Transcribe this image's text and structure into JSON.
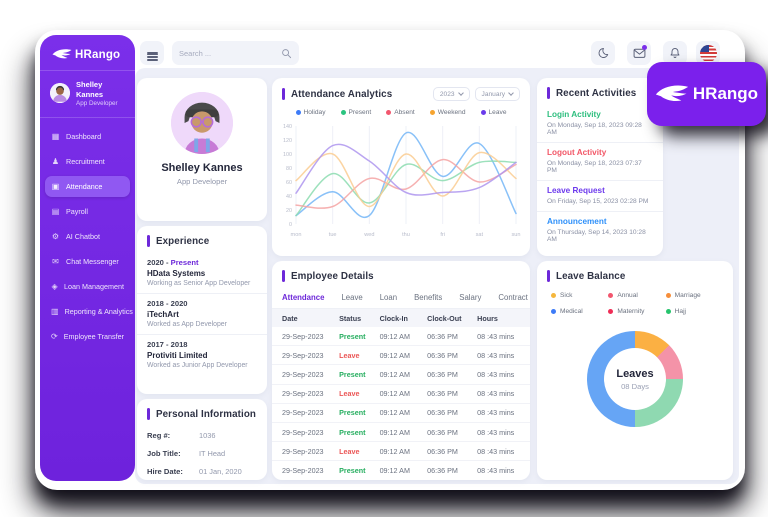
{
  "sidebar": {
    "logo_text": "HRango",
    "user": {
      "name": "Shelley Kannes",
      "role": "App Developer"
    },
    "items": [
      {
        "label": "Dashboard",
        "icon": "dashboard-icon",
        "glyph": "▦",
        "active": false
      },
      {
        "label": "Recruitment",
        "icon": "recruitment-icon",
        "glyph": "♟",
        "active": false
      },
      {
        "label": "Attendance",
        "icon": "attendance-icon",
        "glyph": "▣",
        "active": true
      },
      {
        "label": "Payroll",
        "icon": "payroll-icon",
        "glyph": "▤",
        "active": false
      },
      {
        "label": "AI Chatbot",
        "icon": "ai-chatbot-icon",
        "glyph": "⚙",
        "active": false
      },
      {
        "label": "Chat Messenger",
        "icon": "chat-messenger-icon",
        "glyph": "✉",
        "active": false
      },
      {
        "label": "Loan Management",
        "icon": "loan-management-icon",
        "glyph": "◈",
        "active": false
      },
      {
        "label": "Reporting & Analytics",
        "icon": "reporting-analytics-icon",
        "glyph": "▥",
        "active": false
      },
      {
        "label": "Employee Transfer",
        "icon": "employee-transfer-icon",
        "glyph": "⟳",
        "active": false
      }
    ]
  },
  "topbar": {
    "search_placeholder": "Search ...",
    "icons": [
      "menu-icon",
      "search-icon",
      "moon-icon",
      "mail-icon",
      "bell-icon",
      "us-flag-icon"
    ]
  },
  "logo_card": {
    "text": "HRango"
  },
  "profile": {
    "name": "Shelley Kannes",
    "role": "App Developer"
  },
  "experience": {
    "title": "Experience",
    "entries": [
      {
        "period": "2020 - ",
        "period_accent": "Present",
        "company": "HData Systems",
        "desc": "Working as Senior App Developer"
      },
      {
        "period": "2018 - 2020",
        "period_accent": "",
        "company": "iTechArt",
        "desc": "Worked as App Developer"
      },
      {
        "period": "2017 - 2018",
        "period_accent": "",
        "company": "Protiviti Limited",
        "desc": "Worked as Junior App Developer"
      }
    ]
  },
  "personal_info": {
    "title": "Personal Information",
    "rows": [
      {
        "label": "Reg #:",
        "value": "1036"
      },
      {
        "label": "Job Title:",
        "value": "IT Head"
      },
      {
        "label": "Hire Date:",
        "value": "01 Jan, 2020"
      }
    ]
  },
  "attendance_analytics": {
    "title": "Attendance Analytics",
    "year_select": "2023",
    "month_select": "January",
    "chart_data": {
      "type": "line",
      "categories": [
        "mon",
        "tue",
        "wed",
        "thu",
        "fri",
        "sat",
        "sun"
      ],
      "series": [
        {
          "name": "Holiday",
          "dot_color": "#3D7BF7",
          "line_color": "#74B6F7",
          "values": [
            12,
            46,
            12,
            130,
            68,
            115,
            15
          ]
        },
        {
          "name": "Present",
          "dot_color": "#2BC480",
          "line_color": "#8CDCB0",
          "values": [
            12,
            72,
            30,
            85,
            62,
            88,
            88
          ]
        },
        {
          "name": "Absent",
          "dot_color": "#F2566E",
          "line_color": "#F4A3A3",
          "values": [
            27,
            25,
            65,
            50,
            92,
            60,
            85
          ]
        },
        {
          "name": "Weekend",
          "dot_color": "#F6A430",
          "line_color": "#FACD92",
          "values": [
            62,
            100,
            25,
            100,
            40,
            102,
            65
          ]
        },
        {
          "name": "Leave",
          "dot_color": "#6A3BEB",
          "line_color": "#AE95EE",
          "values": [
            44,
            112,
            90,
            45,
            45,
            52,
            88
          ]
        }
      ],
      "ylim": [
        0,
        140
      ],
      "yticks": [
        0,
        20,
        40,
        60,
        80,
        100,
        120,
        140
      ],
      "grid": "vertical-faint",
      "legend_position": "top"
    }
  },
  "employee_details": {
    "title": "Employee Details",
    "tabs": [
      "Attendance",
      "Leave",
      "Loan",
      "Benefits",
      "Salary",
      "Contract"
    ],
    "active_tab": "Attendance",
    "columns": [
      "Date",
      "Status",
      "Clock-In",
      "Clock-Out",
      "Hours"
    ],
    "rows": [
      {
        "date": "29-Sep-2023",
        "status": "Present",
        "clock_in": "09:12 AM",
        "clock_out": "06:36 PM",
        "hours": "08 :43 mins"
      },
      {
        "date": "29-Sep-2023",
        "status": "Leave",
        "clock_in": "09:12 AM",
        "clock_out": "06:36 PM",
        "hours": "08 :43 mins"
      },
      {
        "date": "29-Sep-2023",
        "status": "Present",
        "clock_in": "09:12 AM",
        "clock_out": "06:36 PM",
        "hours": "08 :43 mins"
      },
      {
        "date": "29-Sep-2023",
        "status": "Leave",
        "clock_in": "09:12 AM",
        "clock_out": "06:36 PM",
        "hours": "08 :43 mins"
      },
      {
        "date": "29-Sep-2023",
        "status": "Present",
        "clock_in": "09:12 AM",
        "clock_out": "06:36 PM",
        "hours": "08 :43 mins"
      },
      {
        "date": "29-Sep-2023",
        "status": "Present",
        "clock_in": "09:12 AM",
        "clock_out": "06:36 PM",
        "hours": "08 :43 mins"
      },
      {
        "date": "29-Sep-2023",
        "status": "Leave",
        "clock_in": "09:12 AM",
        "clock_out": "06:36 PM",
        "hours": "08 :43 mins"
      },
      {
        "date": "29-Sep-2023",
        "status": "Present",
        "clock_in": "09:12 AM",
        "clock_out": "06:36 PM",
        "hours": "08 :43 mins"
      },
      {
        "date": "29-Sep-2023",
        "status": "Leave",
        "clock_in": "09:12 AM",
        "clock_out": "06:36 PM",
        "hours": "08 :43 mins"
      }
    ]
  },
  "recent_activities": {
    "title": "Recent Activities",
    "items": [
      {
        "label": "Login Activity",
        "color": "#2DBE7E",
        "datetime": "On Monday, Sep 18, 2023  09:28 AM"
      },
      {
        "label": "Logout Activity",
        "color": "#F25767",
        "datetime": "On Monday, Sep 18, 2023  07:37 PM"
      },
      {
        "label": "Leave Request",
        "color": "#6D3AED",
        "datetime": "On Friday, Sep 15, 2023  02:28 PM"
      },
      {
        "label": "Announcement",
        "color": "#2E90FA",
        "datetime": "On Thursday, Sep 14, 2023  10:28 AM"
      }
    ]
  },
  "leave_balance": {
    "title": "Leave Balance",
    "legend": [
      {
        "label": "Sick",
        "color": "#F5B73D"
      },
      {
        "label": "Annual",
        "color": "#F2566E"
      },
      {
        "label": "Marriage",
        "color": "#F68E3A"
      },
      {
        "label": "Medical",
        "color": "#3D7BF7"
      },
      {
        "label": "Maternity",
        "color": "#EF2D56"
      },
      {
        "label": "Hajj",
        "color": "#27C46D"
      }
    ],
    "chart_data": {
      "type": "pie",
      "donut": true,
      "center_title": "Leaves",
      "center_sub": "08 Days",
      "segments": [
        {
          "color": "#FBB043",
          "percent": 12.5
        },
        {
          "color": "#F493A8",
          "percent": 12.5
        },
        {
          "color": "#8FD9B1",
          "percent": 25
        },
        {
          "color": "#66A5F5",
          "percent": 50
        }
      ]
    }
  }
}
